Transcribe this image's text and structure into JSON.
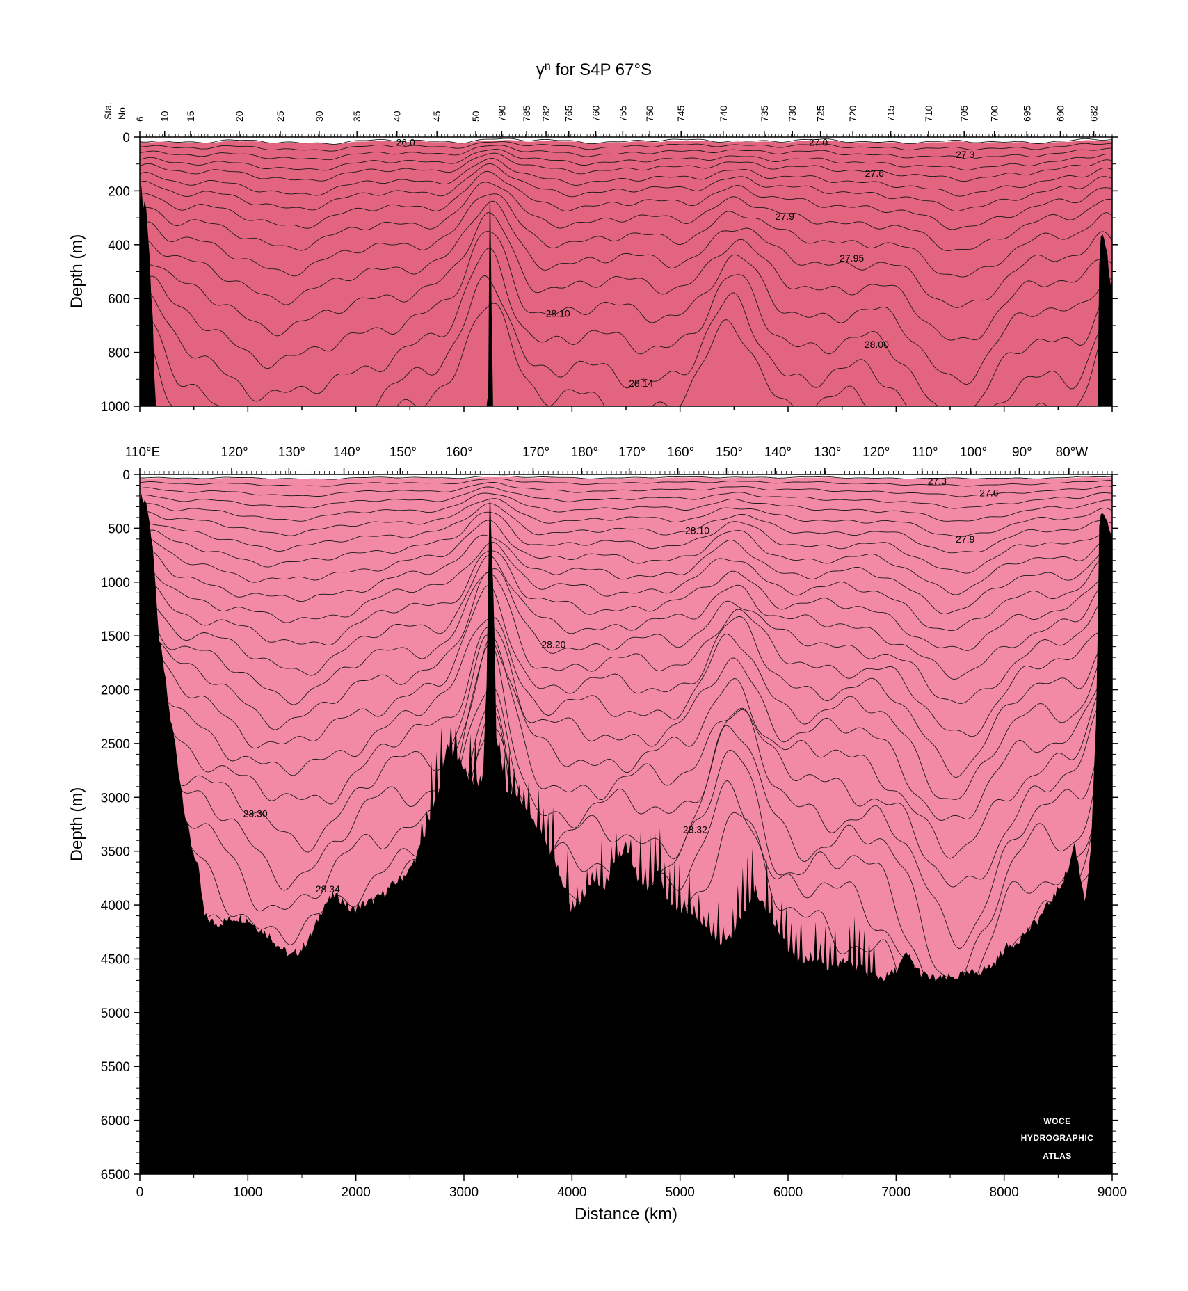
{
  "title": {
    "prefix": "γ",
    "superscript": "n",
    "suffix": " for S4P 67°S"
  },
  "station_axis_label": {
    "line1": "Sta.",
    "line2": "No."
  },
  "logo": {
    "line1": "WOCE",
    "line2": "HYDROGRAPHIC",
    "line3": "ATLAS"
  },
  "colors": {
    "pink_light": "#ffb9cd",
    "pink": "#f38aa5",
    "pink_dark": "#e2647f",
    "green_pale": "#b8f1b3",
    "green_light": "#9ee98f",
    "green_mid": "#73e061",
    "green": "#4cd73a",
    "green_dark": "#26cf18",
    "green_deep": "#0bc903",
    "bottom": "#000000"
  },
  "chart_data": [
    {
      "type": "contour_section",
      "panel": "upper",
      "ylabel": "Depth (m)",
      "ylim": [
        1000,
        0
      ],
      "xlim": [
        0,
        9000
      ],
      "yticks": [
        0,
        200,
        400,
        600,
        800,
        1000
      ],
      "station_ticks": [
        {
          "label": "6",
          "x": 0
        },
        {
          "label": "10",
          "x": 230
        },
        {
          "label": "15",
          "x": 470
        },
        {
          "label": "20",
          "x": 920
        },
        {
          "label": "25",
          "x": 1300
        },
        {
          "label": "30",
          "x": 1660
        },
        {
          "label": "35",
          "x": 2010
        },
        {
          "label": "40",
          "x": 2380
        },
        {
          "label": "45",
          "x": 2750
        },
        {
          "label": "50",
          "x": 3110
        },
        {
          "label": "790",
          "x": 3350
        },
        {
          "label": "785",
          "x": 3580
        },
        {
          "label": "782",
          "x": 3760
        },
        {
          "label": "765",
          "x": 3970
        },
        {
          "label": "760",
          "x": 4220
        },
        {
          "label": "755",
          "x": 4470
        },
        {
          "label": "750",
          "x": 4720
        },
        {
          "label": "745",
          "x": 5010
        },
        {
          "label": "740",
          "x": 5400
        },
        {
          "label": "735",
          "x": 5780
        },
        {
          "label": "730",
          "x": 6040
        },
        {
          "label": "725",
          "x": 6300
        },
        {
          "label": "720",
          "x": 6600
        },
        {
          "label": "715",
          "x": 6950
        },
        {
          "label": "710",
          "x": 7300
        },
        {
          "label": "705",
          "x": 7630
        },
        {
          "label": "700",
          "x": 7910
        },
        {
          "label": "695",
          "x": 8210
        },
        {
          "label": "690",
          "x": 8520
        },
        {
          "label": "682",
          "x": 8830
        }
      ],
      "contour_labels": [
        {
          "text": "26.0",
          "x": 2460,
          "y": 20
        },
        {
          "text": "27.0",
          "x": 6280,
          "y": 20
        },
        {
          "text": "27.3",
          "x": 7640,
          "y": 65
        },
        {
          "text": "27.6",
          "x": 6800,
          "y": 135
        },
        {
          "text": "27.9",
          "x": 5970,
          "y": 295
        },
        {
          "text": "27.95",
          "x": 6590,
          "y": 450
        },
        {
          "text": "28.10",
          "x": 3870,
          "y": 655
        },
        {
          "text": "28.00",
          "x": 6820,
          "y": 770
        },
        {
          "text": "28.14",
          "x": 4640,
          "y": 915
        }
      ]
    },
    {
      "type": "contour_section",
      "panel": "lower",
      "xlabel": "Distance (km)",
      "ylabel": "Depth (m)",
      "ylim": [
        6500,
        0
      ],
      "xlim": [
        0,
        9000
      ],
      "xticks": [
        0,
        1000,
        2000,
        3000,
        4000,
        5000,
        6000,
        7000,
        8000,
        9000
      ],
      "yticks": [
        0,
        500,
        1000,
        1500,
        2000,
        2500,
        3000,
        3500,
        4000,
        4500,
        5000,
        5500,
        6000,
        6500
      ],
      "longitude_ticks": [
        {
          "label": "110°E",
          "x": 0
        },
        {
          "label": "120°",
          "x": 850
        },
        {
          "label": "130°",
          "x": 1380
        },
        {
          "label": "140°",
          "x": 1890
        },
        {
          "label": "150°",
          "x": 2410
        },
        {
          "label": "160°",
          "x": 2930
        },
        {
          "label": "170°",
          "x": 3640
        },
        {
          "label": "180°",
          "x": 4090
        },
        {
          "label": "170°",
          "x": 4530
        },
        {
          "label": "160°",
          "x": 4980
        },
        {
          "label": "150°",
          "x": 5430
        },
        {
          "label": "140°",
          "x": 5880
        },
        {
          "label": "130°",
          "x": 6340
        },
        {
          "label": "120°",
          "x": 6790
        },
        {
          "label": "110°",
          "x": 7240
        },
        {
          "label": "100°",
          "x": 7690
        },
        {
          "label": "90°",
          "x": 8140
        },
        {
          "label": "80°W",
          "x": 8600
        }
      ],
      "contour_labels": [
        {
          "text": "27.3",
          "x": 7380,
          "y": 60
        },
        {
          "text": "27.6",
          "x": 7860,
          "y": 170
        },
        {
          "text": "28.10",
          "x": 5160,
          "y": 520
        },
        {
          "text": "27.9",
          "x": 7640,
          "y": 600
        },
        {
          "text": "28.20",
          "x": 3830,
          "y": 1580
        },
        {
          "text": "28.30",
          "x": 1070,
          "y": 3150
        },
        {
          "text": "28.32",
          "x": 5140,
          "y": 3300
        },
        {
          "text": "28.34",
          "x": 1740,
          "y": 3850
        }
      ]
    }
  ]
}
